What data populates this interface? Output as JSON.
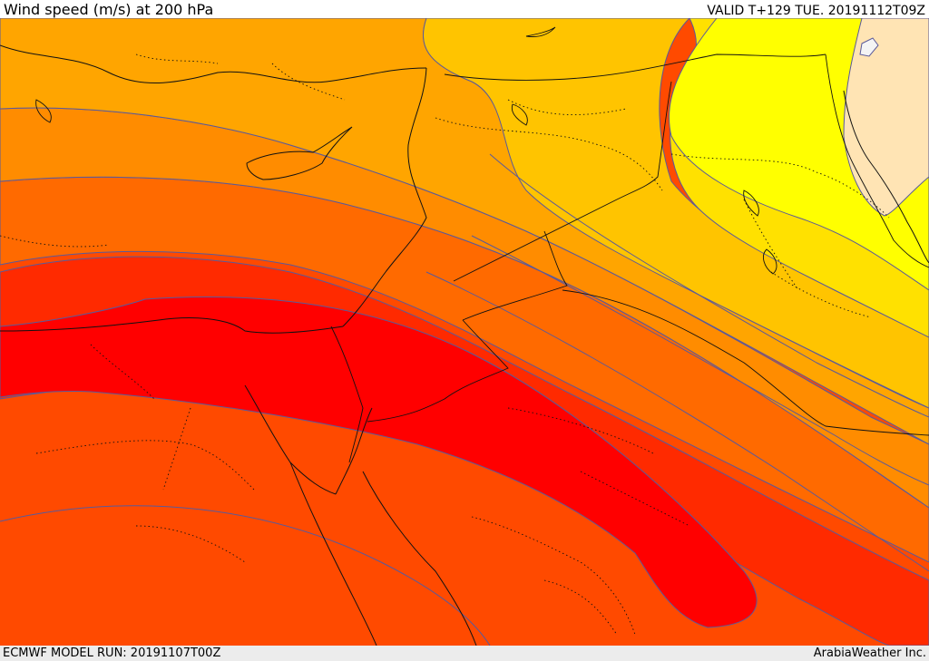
{
  "header": {
    "title": "Wind speed (m/s) at 200 hPa",
    "valid": "VALID T+129 TUE. 20191112T09Z"
  },
  "footer": {
    "model_run": "ECMWF MODEL RUN: 20191107T00Z",
    "credit": "ArabiaWeather Inc."
  },
  "map": {
    "colors": {
      "band_1": "#ffe4b4",
      "band_2": "#ffff00",
      "band_3": "#ffe100",
      "band_4": "#ffc400",
      "band_5": "#ffa500",
      "band_6": "#ff8c00",
      "band_7": "#ff6a00",
      "band_8": "#ff4a00",
      "band_9": "#ff2a00",
      "band_10": "#ff0000",
      "contour": "#5a5a9a",
      "coast": "#111111"
    }
  }
}
